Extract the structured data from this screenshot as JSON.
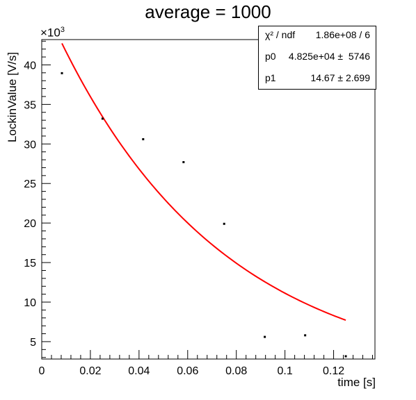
{
  "chart_data": {
    "type": "scatter",
    "title": "average = 1000",
    "xlabel": "time [s]",
    "ylabel": "LockinValue [V/s]",
    "y_multiplier": "×10",
    "y_multiplier_exp": "3",
    "xlim": [
      0,
      0.137
    ],
    "ylim": [
      2800,
      43200
    ],
    "x_ticks": [
      0,
      0.02,
      0.04,
      0.06,
      0.08,
      0.1,
      0.12
    ],
    "x_tick_labels": [
      "0",
      "0.02",
      "0.04",
      "0.06",
      "0.08",
      "0.1",
      "0.12"
    ],
    "y_ticks": [
      5000,
      10000,
      15000,
      20000,
      25000,
      30000,
      35000,
      40000
    ],
    "y_tick_labels": [
      "5",
      "10",
      "15",
      "20",
      "25",
      "30",
      "35",
      "40"
    ],
    "series": [
      {
        "points": [
          [
            0.0083,
            38950
          ],
          [
            0.025,
            33200
          ],
          [
            0.0417,
            30600
          ],
          [
            0.0583,
            27700
          ],
          [
            0.075,
            19900
          ],
          [
            0.0917,
            5600
          ],
          [
            0.1083,
            5800
          ],
          [
            0.125,
            3150
          ]
        ],
        "color": "#000000"
      }
    ],
    "fit": {
      "function": "expo",
      "p0": 48250,
      "p1": 14.67,
      "x_range": [
        0.0083,
        0.125
      ],
      "color": "#ff0000"
    },
    "grid": false
  },
  "stats_box": {
    "rows": [
      {
        "name": "χ² / ndf",
        "value": "1.86e+08 / 6"
      },
      {
        "name": "p0",
        "value": "4.825e+04 ±  5746"
      },
      {
        "name": "p1",
        "value": "14.67 ± 2.699"
      }
    ]
  }
}
